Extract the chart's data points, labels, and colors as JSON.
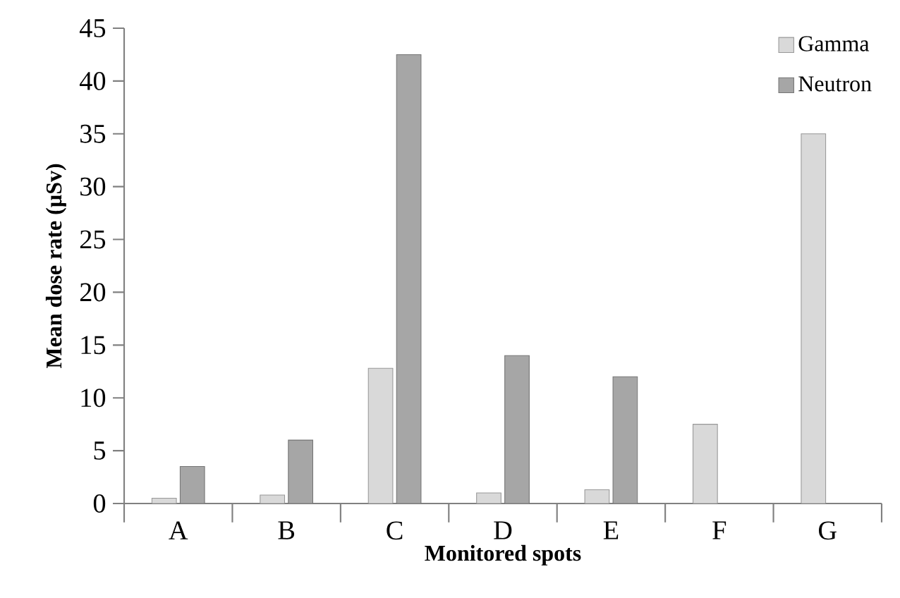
{
  "chart_data": {
    "type": "bar",
    "xlabel": "Monitored spots",
    "ylabel": "Mean dose rate (µSv)",
    "categories": [
      "A",
      "B",
      "C",
      "D",
      "E",
      "F",
      "G"
    ],
    "series": [
      {
        "name": "Gamma",
        "color": "#d9d9d9",
        "values": [
          0.5,
          0.8,
          12.8,
          1,
          1.3,
          7.5,
          35
        ]
      },
      {
        "name": "Neutron",
        "color": "#a6a6a6",
        "values": [
          3.5,
          6,
          42.5,
          14,
          12,
          null,
          null
        ]
      }
    ],
    "ylim": [
      0,
      45
    ],
    "yticks": [
      0,
      5,
      10,
      15,
      20,
      25,
      30,
      35,
      40,
      45
    ],
    "grid": false,
    "legend": "top right"
  }
}
